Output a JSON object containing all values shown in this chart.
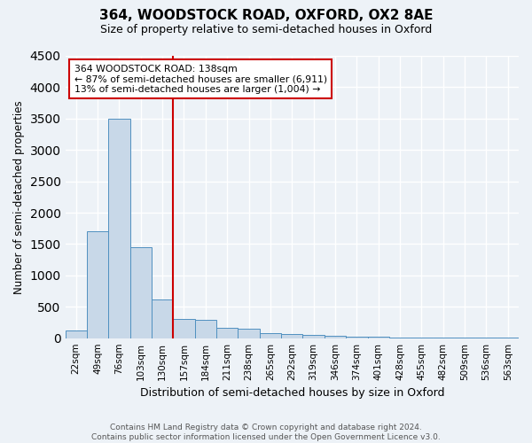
{
  "title1": "364, WOODSTOCK ROAD, OXFORD, OX2 8AE",
  "title2": "Size of property relative to semi-detached houses in Oxford",
  "xlabel": "Distribution of semi-detached houses by size in Oxford",
  "ylabel": "Number of semi-detached properties",
  "bar_color": "#c8d8e8",
  "bar_edge_color": "#5090c0",
  "categories": [
    "22sqm",
    "49sqm",
    "76sqm",
    "103sqm",
    "130sqm",
    "157sqm",
    "184sqm",
    "211sqm",
    "238sqm",
    "265sqm",
    "292sqm",
    "319sqm",
    "346sqm",
    "374sqm",
    "401sqm",
    "428sqm",
    "455sqm",
    "482sqm",
    "509sqm",
    "536sqm",
    "563sqm"
  ],
  "values": [
    120,
    1700,
    3500,
    1450,
    610,
    300,
    290,
    160,
    155,
    80,
    60,
    45,
    35,
    30,
    20,
    15,
    10,
    8,
    5,
    5,
    5
  ],
  "ylim": [
    0,
    4500
  ],
  "yticks": [
    0,
    500,
    1000,
    1500,
    2000,
    2500,
    3000,
    3500,
    4000,
    4500
  ],
  "annotation_title": "364 WOODSTOCK ROAD: 138sqm",
  "annotation_line1": "← 87% of semi-detached houses are smaller (6,911)",
  "annotation_line2": "13% of semi-detached houses are larger (1,004) →",
  "vline_bin": 4,
  "red_color": "#cc0000",
  "footer1": "Contains HM Land Registry data © Crown copyright and database right 2024.",
  "footer2": "Contains public sector information licensed under the Open Government Licence v3.0.",
  "background_color": "#edf2f7",
  "grid_color": "#ffffff"
}
